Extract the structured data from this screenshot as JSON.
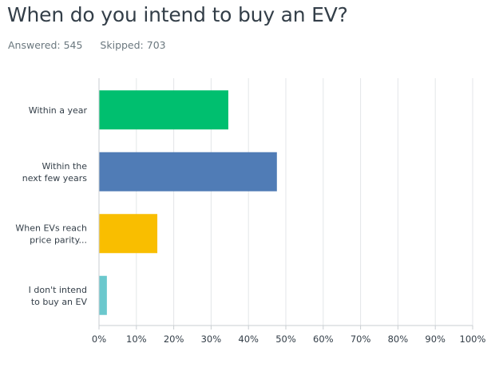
{
  "header": {
    "question": "When do you intend to buy an EV?",
    "answered_label": "Answered: 545",
    "skipped_label": "Skipped: 703"
  },
  "chart_data": {
    "type": "bar",
    "orientation": "horizontal",
    "title": "When do you intend to buy an EV?",
    "categories": [
      [
        "Within a year"
      ],
      [
        "Within the",
        "next few years"
      ],
      [
        "When EVs reach",
        "price parity..."
      ],
      [
        "I don't intend",
        "to buy an EV"
      ]
    ],
    "values": [
      34.5,
      47.5,
      15.5,
      2.0
    ],
    "colors": [
      "#00bf6f",
      "#507cb6",
      "#f9be00",
      "#6bc8cd"
    ],
    "xlim": [
      0,
      100
    ],
    "x_ticks": [
      0,
      10,
      20,
      30,
      40,
      50,
      60,
      70,
      80,
      90,
      100
    ],
    "x_tick_labels": [
      "0%",
      "10%",
      "20%",
      "30%",
      "40%",
      "50%",
      "60%",
      "70%",
      "80%",
      "90%",
      "100%"
    ],
    "grid": true,
    "xlabel": "",
    "ylabel": ""
  }
}
